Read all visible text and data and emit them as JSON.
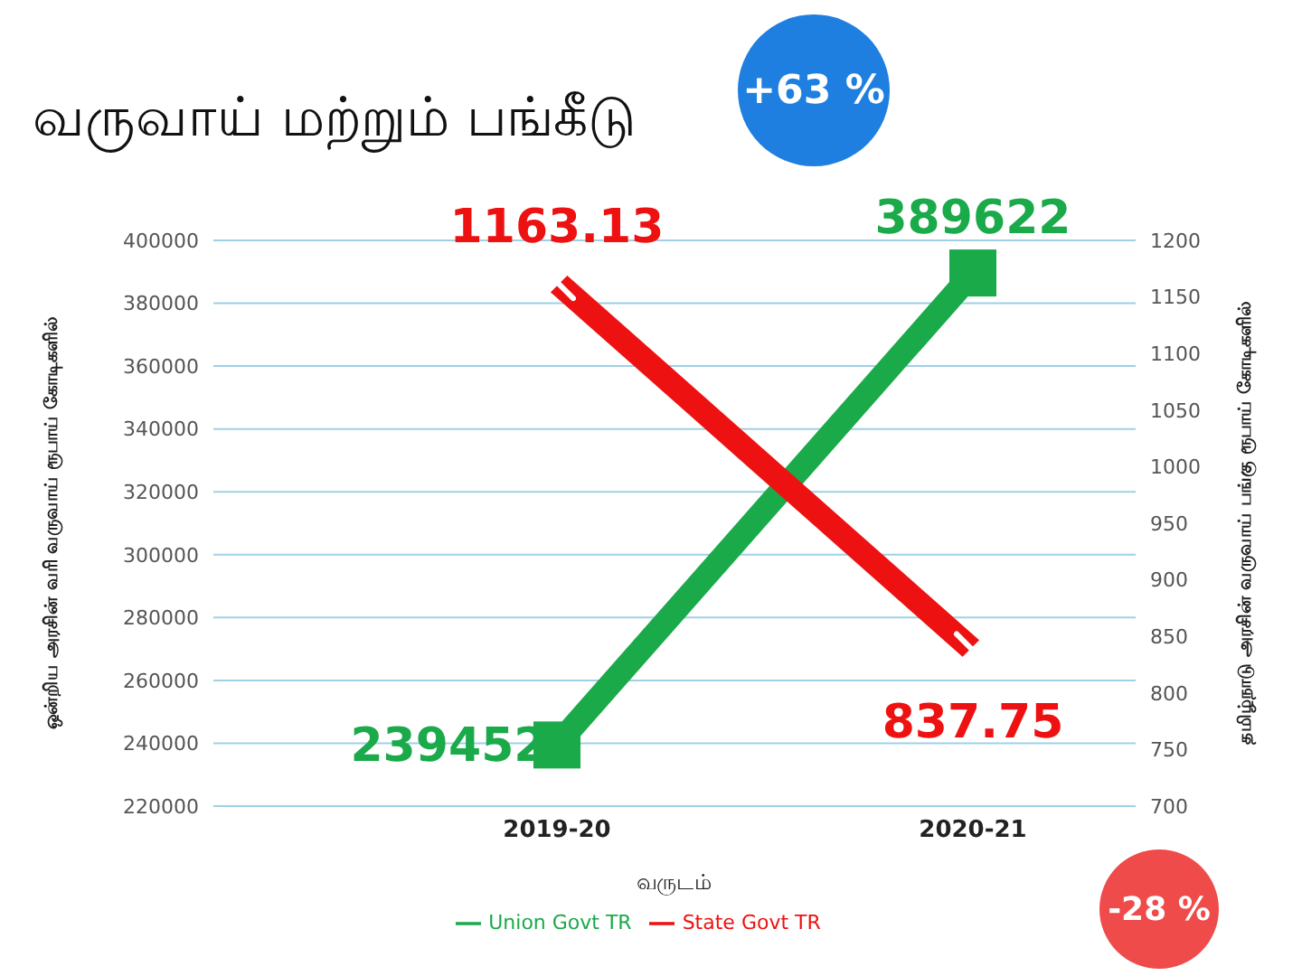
{
  "chart_data": {
    "type": "line",
    "title": "வருவாய் மற்றும் பங்கீடு",
    "xlabel": "வருடம்",
    "ylabel": "ஒன்றிய அரசின் வரி வருவாய் ரூபாய் கோடிகளில்",
    "y2label": "தமிழ்நாடு அரசின் வருவாய் பங்கு ரூபாய் கோடிகளில்",
    "categories": [
      "2019-20",
      "2020-21"
    ],
    "series": [
      {
        "name": "Union Govt TR",
        "color": "#1aaa4a",
        "values": [
          239452,
          389622
        ],
        "marker": "square"
      },
      {
        "name": "State Govt TR",
        "color": "#ee1111",
        "values": [
          1163.13,
          837.75
        ],
        "axis": "y2",
        "marker": "cross"
      }
    ],
    "ylim": [
      220000,
      400000
    ],
    "yticks": [
      220000,
      240000,
      260000,
      280000,
      300000,
      320000,
      340000,
      360000,
      380000,
      400000
    ],
    "y2lim": [
      700,
      1200
    ],
    "y2ticks": [
      700,
      750,
      800,
      850,
      900,
      950,
      1000,
      1050,
      1100,
      1150,
      1200
    ],
    "grid": "y",
    "legend": "bottom",
    "data_labels": true,
    "annotations": [
      "+63 %",
      "-28 %"
    ]
  }
}
